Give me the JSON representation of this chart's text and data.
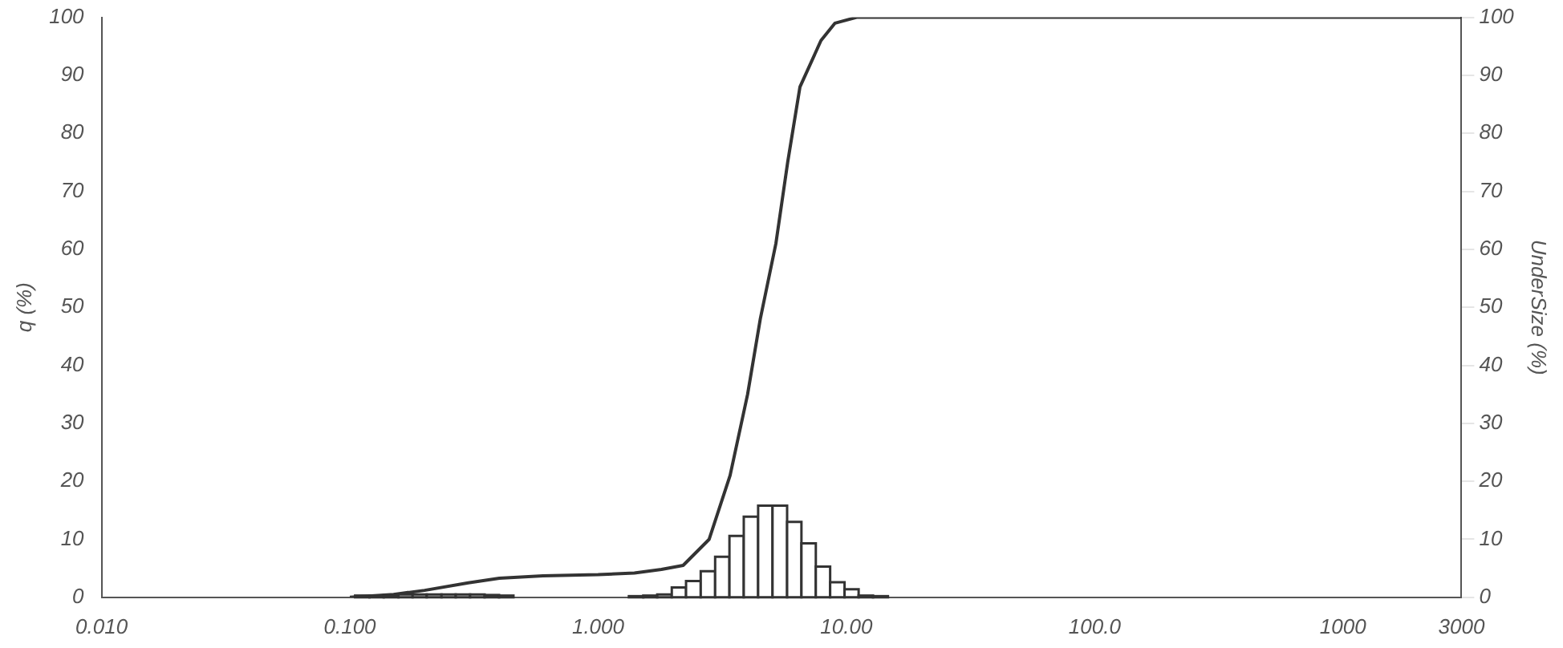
{
  "chart_data": {
    "type": "histogram",
    "ylabel": "q (%)",
    "y2label": "UnderSize (%)",
    "log": "x",
    "grid": false,
    "legend": false,
    "xlim": [
      0.01,
      3000
    ],
    "xticks": [
      {
        "value": 0.01,
        "label": "0.010"
      },
      {
        "value": 0.1,
        "label": "0.100"
      },
      {
        "value": 1,
        "label": "1.000"
      },
      {
        "value": 10,
        "label": "10.00"
      },
      {
        "value": 100,
        "label": "100.0"
      },
      1000,
      3000
    ],
    "ylim": [
      0,
      100
    ],
    "yticks": [
      0,
      10,
      20,
      30,
      40,
      50,
      60,
      70,
      80,
      90,
      100
    ],
    "y2lim": [
      0,
      100
    ],
    "y2ticks": [
      0,
      10,
      20,
      30,
      40,
      50,
      60,
      70,
      80,
      90,
      100
    ],
    "series": [
      {
        "color": "#333333",
        "bins": [
          0.105,
          0.12,
          0.137,
          0.157,
          0.179,
          0.204,
          0.234,
          0.267,
          0.305,
          0.349,
          0.399,
          0.456
        ],
        "values": [
          0.3,
          0.3,
          0.4,
          0.5,
          0.5,
          0.5,
          0.5,
          0.5,
          0.5,
          0.4,
          0.3
        ]
      },
      {
        "color": "#333333",
        "bins": [
          1.33,
          1.52,
          1.73,
          1.98,
          2.26,
          2.59,
          2.96,
          3.38,
          3.86,
          4.41,
          5.04,
          5.77,
          6.59,
          7.53,
          8.6,
          9.83,
          11.2,
          12.8,
          14.7
        ],
        "values": [
          0.2,
          0.3,
          0.5,
          1.7,
          2.8,
          4.5,
          7.0,
          10.6,
          13.9,
          15.8,
          15.8,
          13.0,
          9.3,
          5.3,
          2.6,
          1.4,
          0.3,
          0.2
        ]
      },
      {
        "type": "line",
        "color": "#333333",
        "x": [
          0.1,
          0.15,
          0.2,
          0.3,
          0.4,
          0.6,
          1.0,
          1.4,
          1.8,
          2.2,
          2.8,
          3.4,
          4.0,
          4.5,
          5.2,
          5.8,
          6.5,
          7.9,
          9,
          11,
          3000
        ],
        "values": [
          0,
          0.5,
          1.2,
          2.5,
          3.3,
          3.7,
          3.9,
          4.2,
          4.8,
          5.5,
          10,
          21,
          35,
          48,
          61,
          75,
          88,
          96,
          99,
          100,
          100
        ]
      }
    ]
  }
}
